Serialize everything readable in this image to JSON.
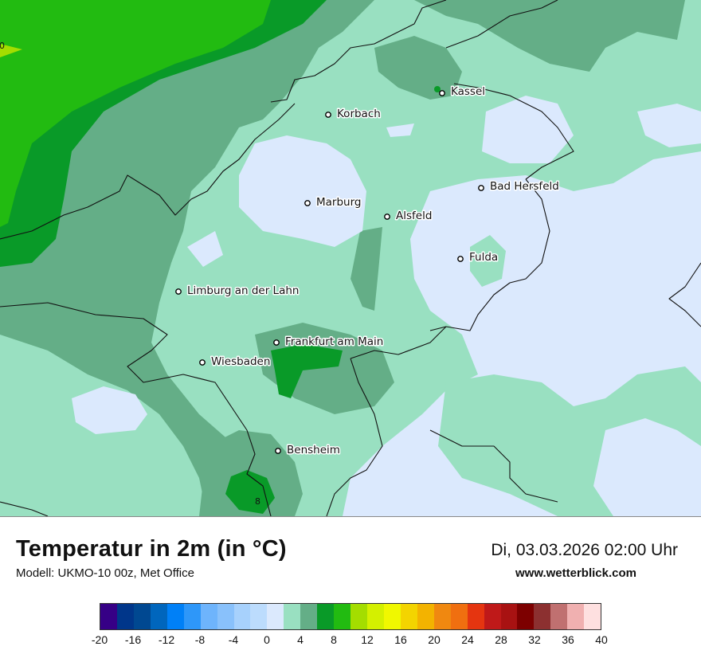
{
  "map": {
    "cities": [
      {
        "name": "Kassel"
      },
      {
        "name": "Korbach"
      },
      {
        "name": "Bad Hersfeld"
      },
      {
        "name": "Marburg"
      },
      {
        "name": "Alsfeld"
      },
      {
        "name": "Fulda"
      },
      {
        "name": "Limburg an der Lahn"
      },
      {
        "name": "Frankfurt am Main"
      },
      {
        "name": "Wiesbaden"
      },
      {
        "name": "Bensheim"
      }
    ],
    "contour_labels": [
      "0",
      "8"
    ],
    "colors": {
      "very_light_blue": "#dbe9fd",
      "pale_green": "#99e0c1",
      "medium_green": "#64ae87",
      "green": "#099a28",
      "bright_green": "#22bb11",
      "yellow_green": "#a4dd00"
    }
  },
  "footer": {
    "title": "Temperatur in 2m (in °C)",
    "subtitle": "Modell: UKMO-10 00z, Met Office",
    "datetime": "Di, 03.03.2026 02:00 Uhr",
    "website": "www.wetterblick.com"
  },
  "legend": {
    "tick_labels": [
      "-20",
      "-16",
      "-12",
      "-8",
      "-4",
      "0",
      "4",
      "8",
      "12",
      "16",
      "20",
      "24",
      "28",
      "32",
      "36",
      "40"
    ],
    "colors": [
      "#360086",
      "#00368a",
      "#004891",
      "#0066bd",
      "#0080f7",
      "#2e97f9",
      "#6eb4fc",
      "#89c1fb",
      "#a7d1fc",
      "#bcdcfd",
      "#dbe9fd",
      "#99e0c1",
      "#64ae87",
      "#099a28",
      "#22bb11",
      "#a4dd00",
      "#d4f000",
      "#f0f800",
      "#f3d400",
      "#f3b300",
      "#f08810",
      "#f06f10",
      "#e53510",
      "#bf1919",
      "#a81212",
      "#7d0000",
      "#8c3030",
      "#c07070",
      "#f0b0b0",
      "#fee0e0"
    ]
  }
}
